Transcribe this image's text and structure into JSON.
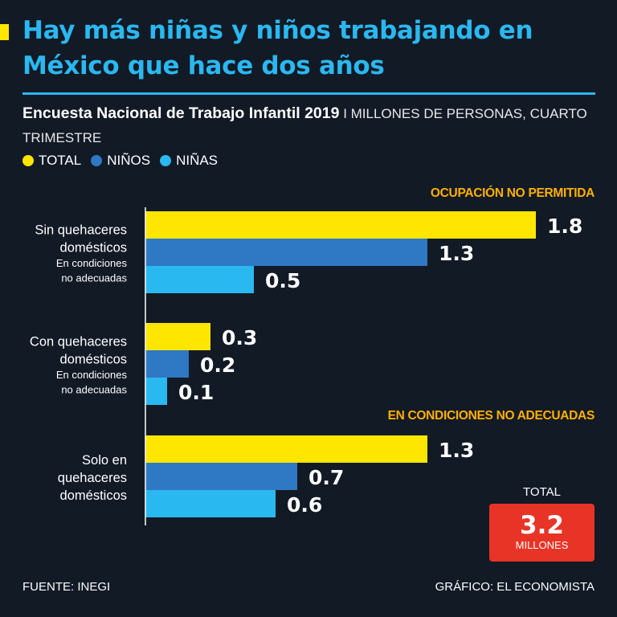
{
  "header": {
    "title": "Hay más niñas y niños trabajando en México que hace dos años",
    "subtitle_bold": "Encuesta Nacional de Trabajo Infantil 2019",
    "subtitle_rest": " I MILLONES DE PERSONAS, CUARTO TRIMESTRE"
  },
  "legend": [
    {
      "label": "TOTAL",
      "color": "#ffe600"
    },
    {
      "label": "NIÑOS",
      "color": "#2f78c4"
    },
    {
      "label": "NIÑAS",
      "color": "#2ab8f0"
    }
  ],
  "sections": {
    "ocupacion": "OCUPACIÓN NO PERMITIDA",
    "condiciones": "EN CONDICIONES NO ADECUADAS"
  },
  "chart_data": {
    "type": "bar",
    "orientation": "horizontal",
    "unit": "MILLONES DE PERSONAS",
    "series": [
      {
        "name": "TOTAL",
        "color": "#ffe600",
        "values": [
          1.8,
          0.3,
          1.3
        ]
      },
      {
        "name": "NIÑOS",
        "color": "#2f78c4",
        "values": [
          1.3,
          0.2,
          0.7
        ]
      },
      {
        "name": "NIÑAS",
        "color": "#2ab8f0",
        "values": [
          0.5,
          0.1,
          0.6
        ]
      }
    ],
    "value_labels": [
      [
        "1.8",
        "1.3",
        "0.5"
      ],
      [
        "0.3",
        "0.2",
        "0.1"
      ],
      [
        "1.3",
        "0.7",
        "0.6"
      ]
    ],
    "categories": [
      {
        "lines": [
          "Sin quehaceres",
          "domésticos"
        ],
        "sublines": [
          "En condiciones",
          "no adecuadas"
        ]
      },
      {
        "lines": [
          "Con quehaceres",
          "domésticos"
        ],
        "sublines": [
          "En condiciones",
          "no adecuadas"
        ]
      },
      {
        "lines": [
          "Solo en",
          "quehaceres",
          "domésticos"
        ],
        "sublines": []
      }
    ],
    "xlim": [
      0,
      1.8
    ]
  },
  "total": {
    "label": "TOTAL",
    "value": "3.2",
    "unit": "MILLONES"
  },
  "footer": {
    "source": "FUENTE: INEGI",
    "credit": "GRÁFICO: EL ECONOMISTA"
  }
}
